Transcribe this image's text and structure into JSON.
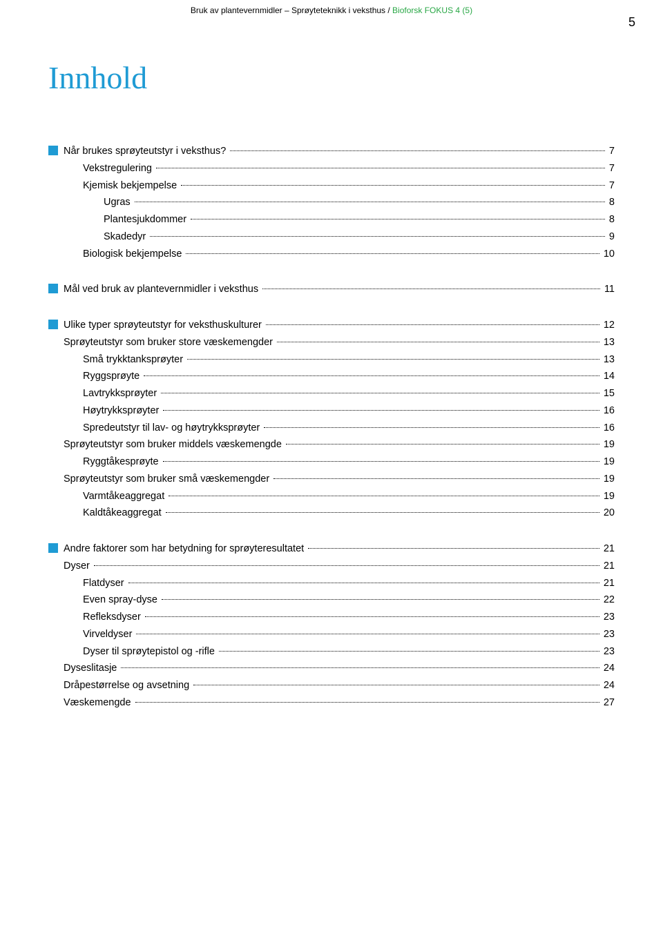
{
  "header": {
    "left": "Bruk av plantevernmidler – Sprøyteteknikk i veksthus / ",
    "accent": "Bioforsk FOKUS 4 (5)"
  },
  "pageNumber": "5",
  "title": "Innhold",
  "colors": {
    "accent_blue": "#1f9bd4",
    "accent_green": "#28a745",
    "text": "#000000",
    "bg": "#ffffff"
  },
  "toc": [
    {
      "entries": [
        {
          "label": "Når brukes sprøyteutstyr i veksthus?",
          "page": "7",
          "indent": 0,
          "bullet": true
        },
        {
          "label": "Vekstregulering",
          "page": "7",
          "indent": 2
        },
        {
          "label": "Kjemisk bekjempelse",
          "page": "7",
          "indent": 2
        },
        {
          "label": "Ugras",
          "page": "8",
          "indent": 3
        },
        {
          "label": "Plantesjukdommer",
          "page": "8",
          "indent": 3
        },
        {
          "label": "Skadedyr",
          "page": "9",
          "indent": 3
        },
        {
          "label": "Biologisk bekjempelse",
          "page": "10",
          "indent": 2
        }
      ]
    },
    {
      "entries": [
        {
          "label": "Mål ved bruk av plantevernmidler i veksthus",
          "page": "11",
          "indent": 0,
          "bullet": true
        }
      ]
    },
    {
      "entries": [
        {
          "label": "Ulike typer sprøyteutstyr for veksthuskulturer",
          "page": "12",
          "indent": 0,
          "bullet": true
        },
        {
          "label": "Sprøyteutstyr som bruker store væskemengder",
          "page": "13",
          "indent": 1
        },
        {
          "label": "Små trykktanksprøyter",
          "page": "13",
          "indent": 2
        },
        {
          "label": "Ryggsprøyte",
          "page": "14",
          "indent": 2
        },
        {
          "label": "Lavtrykksprøyter",
          "page": "15",
          "indent": 2
        },
        {
          "label": "Høytrykksprøyter",
          "page": "16",
          "indent": 2
        },
        {
          "label": "Spredeutstyr til lav- og høytrykksprøyter",
          "page": "16",
          "indent": 2
        },
        {
          "label": "Sprøyteutstyr som bruker middels væskemengde",
          "page": "19",
          "indent": 1
        },
        {
          "label": "Ryggtåkesprøyte",
          "page": "19",
          "indent": 2
        },
        {
          "label": "Sprøyteutstyr som bruker små væskemengder",
          "page": "19",
          "indent": 1
        },
        {
          "label": "Varmtåkeaggregat",
          "page": "19",
          "indent": 2
        },
        {
          "label": "Kaldtåkeaggregat",
          "page": "20",
          "indent": 2
        }
      ]
    },
    {
      "entries": [
        {
          "label": "Andre faktorer som har betydning for sprøyteresultatet",
          "page": "21",
          "indent": 0,
          "bullet": true
        },
        {
          "label": "Dyser",
          "page": "21",
          "indent": 1
        },
        {
          "label": "Flatdyser",
          "page": "21",
          "indent": 2
        },
        {
          "label": "Even spray-dyse",
          "page": "22",
          "indent": 2
        },
        {
          "label": "Refleksdyser",
          "page": "23",
          "indent": 2
        },
        {
          "label": "Virveldyser",
          "page": "23",
          "indent": 2
        },
        {
          "label": "Dyser til sprøytepistol og -rifle",
          "page": "23",
          "indent": 2
        },
        {
          "label": "Dyseslitasje",
          "page": "24",
          "indent": 1
        },
        {
          "label": "Dråpestørrelse og avsetning",
          "page": "24",
          "indent": 1
        },
        {
          "label": "Væskemengde",
          "page": "27",
          "indent": 1
        }
      ]
    }
  ]
}
